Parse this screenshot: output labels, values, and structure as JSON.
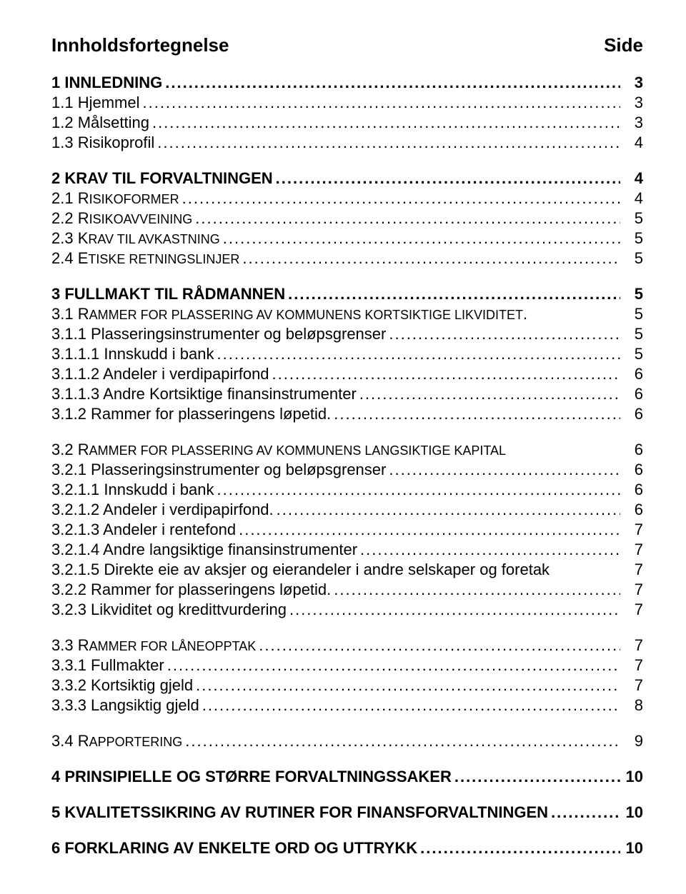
{
  "title_left": "Innholdsfortegnelse",
  "title_right": "Side",
  "leader_dots": "..................................................................................................................................",
  "leader_dots_short": "...........................................................................",
  "sections": {
    "s1": {
      "label": "1 INNLEDNING",
      "page": "3"
    },
    "s11": {
      "label": "1.1 Hjemmel",
      "page": "3"
    },
    "s12": {
      "label": "1.2 Målsetting",
      "page": "3"
    },
    "s13": {
      "label": "1.3 Risikoprofil",
      "page": "4"
    },
    "s2": {
      "label": "2 KRAV TIL FORVALTNINGEN",
      "page": "4"
    },
    "s21": {
      "labelA": "2.1 R",
      "labelB": "ISIKOFORMER",
      "page": "4"
    },
    "s22": {
      "labelA": "2.2 R",
      "labelB": "ISIKOAVVEINING",
      "page": "5"
    },
    "s23": {
      "labelA": "2.3 K",
      "labelB": "RAV TIL AVKASTNING",
      "page": "5"
    },
    "s24": {
      "labelA": "2.4 E",
      "labelB": "TISKE RETNINGSLINJER",
      "page": "5"
    },
    "s3": {
      "label": "3 FULLMAKT TIL RÅDMANNEN",
      "page": "5"
    },
    "s31": {
      "labelA": "3.1 R",
      "labelB": "AMMER FOR PLASSERING AV KOMMUNENS KORTSIKTIGE LIKVIDITET",
      "page": "5"
    },
    "s311": {
      "label": "3.1.1 Plasseringsinstrumenter og beløpsgrenser",
      "page": "5"
    },
    "s3111": {
      "label": "3.1.1.1 Innskudd i bank",
      "page": "5"
    },
    "s3112": {
      "label": "3.1.1.2 Andeler i verdipapirfond",
      "page": "6"
    },
    "s3113": {
      "label": "3.1.1.3 Andre Kortsiktige finansinstrumenter",
      "page": "6"
    },
    "s312": {
      "label": "3.1.2 Rammer for plasseringens løpetid.",
      "page": "6"
    },
    "s32": {
      "labelA": "3.2 R",
      "labelB": "AMMER FOR PLASSERING AV KOMMUNENS LANGSIKTIGE KAPITAL",
      "page": "6"
    },
    "s321": {
      "label": "3.2.1 Plasseringsinstrumenter og beløpsgrenser",
      "page": "6"
    },
    "s3211": {
      "label": "3.2.1.1 Innskudd i bank",
      "page": "6"
    },
    "s3212": {
      "label": "3.2.1.2 Andeler i verdipapirfond.",
      "page": "6"
    },
    "s3213": {
      "label": "3.2.1.3 Andeler i rentefond",
      "page": "7"
    },
    "s3214": {
      "label": "3.2.1.4 Andre langsiktige finansinstrumenter",
      "page": "7"
    },
    "s3215": {
      "label": "3.2.1.5 Direkte eie av aksjer og eierandeler i andre selskaper og foretak",
      "page": "7"
    },
    "s322": {
      "label": "3.2.2 Rammer for plasseringens løpetid.",
      "page": "7"
    },
    "s323": {
      "label": "3.2.3 Likviditet og kredittvurdering",
      "page": "7"
    },
    "s33": {
      "labelA": "3.3 R",
      "labelB": "AMMER FOR LÅNEOPPTAK",
      "page": "7"
    },
    "s331": {
      "label": "3.3.1 Fullmakter",
      "page": "7"
    },
    "s332": {
      "label": "3.3.2 Kortsiktig gjeld",
      "page": "7"
    },
    "s333": {
      "label": "3.3.3 Langsiktig gjeld",
      "page": "8"
    },
    "s34": {
      "labelA": "3.4 R",
      "labelB": "APPORTERING",
      "page": "9"
    },
    "s4": {
      "label": "4 PRINSIPIELLE OG STØRRE FORVALTNINGSSAKER",
      "page": "10"
    },
    "s5": {
      "label": "5 KVALITETSSIKRING AV RUTINER FOR FINANSFORVALTNINGEN",
      "page": "10"
    },
    "s6": {
      "label": "6 FORKLARING AV ENKELTE ORD OG UTTRYKK",
      "page": "10"
    }
  }
}
